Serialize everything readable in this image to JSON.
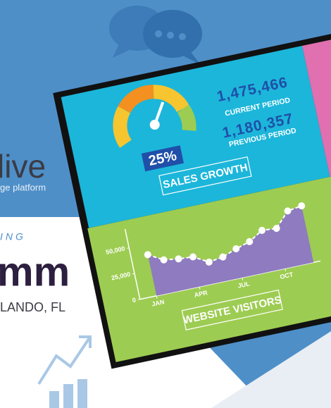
{
  "background": {
    "brand_word": "live",
    "tagline_fragment": "ge platform",
    "event_label_fragment": "ING",
    "event_logo_fragment": "mm",
    "location_fragment": "LANDO, FL"
  },
  "dashboard": {
    "current_value": "1,475,466",
    "current_label": "CURRENT PERIOD",
    "previous_value": "1,180,357",
    "previous_label": "PREVIOUS PERIOD",
    "growth": "25%",
    "growth_label": "SALES GROWTH"
  },
  "chart_data": {
    "type": "area",
    "title": "WEBSITE VISITORS",
    "categories": [
      "JAN",
      null,
      null,
      "APR",
      null,
      null,
      "JUL",
      null,
      null,
      "OCT",
      null,
      null
    ],
    "values": [
      40000,
      32000,
      30000,
      29000,
      21000,
      23000,
      28000,
      32000,
      40000,
      39000,
      53000,
      55000
    ],
    "color": "#8f7bbf",
    "ylim": [
      0,
      65000
    ],
    "yticks": [
      0,
      {
        "value": 25000,
        "label": "25,000"
      },
      {
        "value": 50000,
        "label": "50,000"
      }
    ]
  }
}
